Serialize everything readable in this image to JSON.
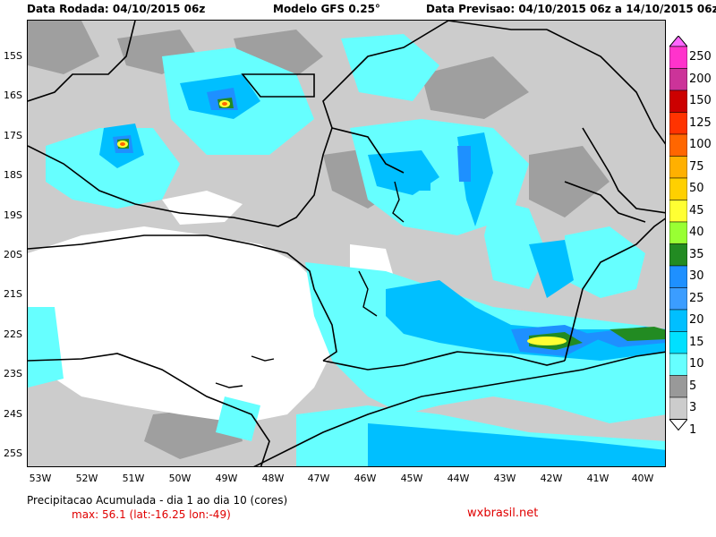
{
  "header": {
    "run_date": "Data Rodada: 04/10/2015 06z",
    "model": "Modelo GFS 0.25°",
    "forecast": "Data Previsao: 04/10/2015 06z a 14/10/2015 06z"
  },
  "lat_labels": [
    "15S",
    "16S",
    "17S",
    "18S",
    "19S",
    "20S",
    "21S",
    "22S",
    "23S",
    "24S",
    "25S"
  ],
  "lon_labels": [
    "53W",
    "52W",
    "51W",
    "50W",
    "49W",
    "48W",
    "47W",
    "46W",
    "45W",
    "44W",
    "43W",
    "42W",
    "41W",
    "40W"
  ],
  "colorbar": {
    "labels": [
      "250",
      "200",
      "150",
      "125",
      "100",
      "75",
      "50",
      "45",
      "40",
      "35",
      "30",
      "25",
      "20",
      "15",
      "10",
      "5",
      "3",
      "1"
    ],
    "colors": [
      "#ff66ff",
      "#ff33cc",
      "#cc3399",
      "#cc0000",
      "#ff3300",
      "#ff6600",
      "#ffb000",
      "#ffd000",
      "#ffff33",
      "#99ff33",
      "#228b22",
      "#1e90ff",
      "#3b9dff",
      "#00bfff",
      "#00e0ff",
      "#66ffff",
      "#999999",
      "#cccccc",
      "#ffffff"
    ]
  },
  "footer": {
    "title": "Precipitacao Acumulada - dia 1 ao dia 10 (cores)",
    "max": "max: 56.1 (lat:-16.25 lon:-49)"
  },
  "brand": "wxbrasil.net"
}
